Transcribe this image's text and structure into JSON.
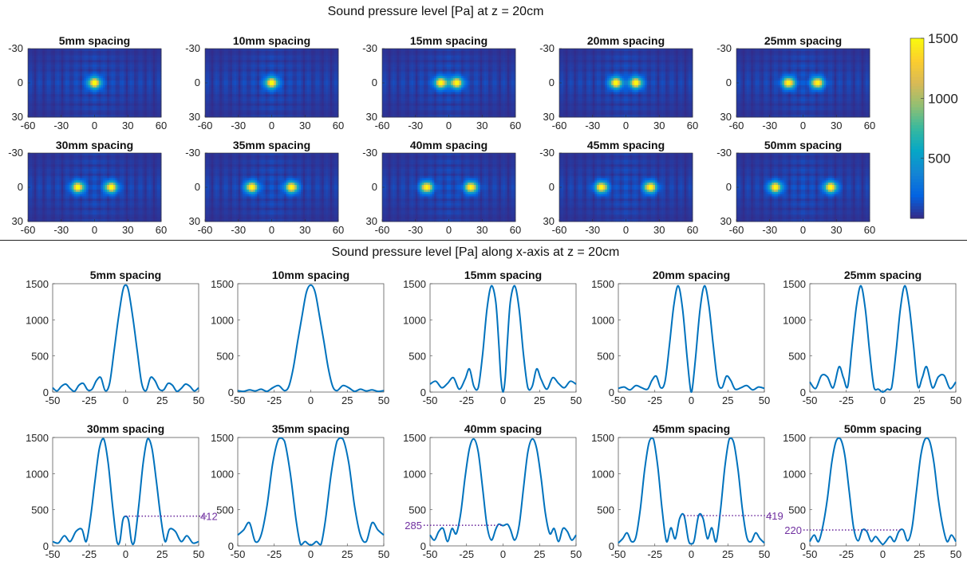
{
  "top_title": "Sound pressure level [Pa] at z = 20cm",
  "bottom_title": "Sound pressure level [Pa] along x-axis at z = 20cm",
  "colormap": {
    "name": "parula",
    "stops": [
      "#352a87",
      "#0363e1",
      "#1485d4",
      "#06a7c6",
      "#38b99e",
      "#92bf73",
      "#d9ba56",
      "#fcce2e",
      "#f9fb0e"
    ],
    "range": [
      0,
      1500
    ],
    "ticks": [
      "500",
      "1000",
      "1500"
    ]
  },
  "chart_data": [
    {
      "type": "heatmap",
      "group": "field-maps",
      "title": "5mm spacing",
      "spacing_mm": 5,
      "xlim": [
        -60,
        60
      ],
      "ylim": [
        -30,
        30
      ],
      "xticks": [
        "-60",
        "-30",
        "0",
        "30",
        "60"
      ],
      "yticks": [
        "-30",
        "0",
        "30"
      ],
      "peaks_x_mm": [
        0
      ],
      "peak_value": 1500
    },
    {
      "type": "heatmap",
      "group": "field-maps",
      "title": "10mm spacing",
      "spacing_mm": 10,
      "xlim": [
        -60,
        60
      ],
      "ylim": [
        -30,
        30
      ],
      "xticks": [
        "-60",
        "-30",
        "0",
        "30",
        "60"
      ],
      "yticks": [
        "-30",
        "0",
        "30"
      ],
      "peaks_x_mm": [
        0
      ],
      "peak_value": 1500
    },
    {
      "type": "heatmap",
      "group": "field-maps",
      "title": "15mm spacing",
      "spacing_mm": 15,
      "xlim": [
        -60,
        60
      ],
      "ylim": [
        -30,
        30
      ],
      "xticks": [
        "-60",
        "-30",
        "0",
        "30",
        "60"
      ],
      "yticks": [
        "-30",
        "0",
        "30"
      ],
      "peaks_x_mm": [
        -7,
        7
      ],
      "peak_value": 1500
    },
    {
      "type": "heatmap",
      "group": "field-maps",
      "title": "20mm spacing",
      "spacing_mm": 20,
      "xlim": [
        -60,
        60
      ],
      "ylim": [
        -30,
        30
      ],
      "xticks": [
        "-60",
        "-30",
        "0",
        "30",
        "60"
      ],
      "yticks": [
        "-30",
        "0",
        "30"
      ],
      "peaks_x_mm": [
        -9,
        9
      ],
      "peak_value": 1500
    },
    {
      "type": "heatmap",
      "group": "field-maps",
      "title": "25mm spacing",
      "spacing_mm": 25,
      "xlim": [
        -60,
        60
      ],
      "ylim": [
        -30,
        30
      ],
      "xticks": [
        "-60",
        "-30",
        "0",
        "30",
        "60"
      ],
      "yticks": [
        "-30",
        "0",
        "30"
      ],
      "peaks_x_mm": [
        -13,
        13
      ],
      "peak_value": 1500
    },
    {
      "type": "heatmap",
      "group": "field-maps",
      "title": "30mm spacing",
      "spacing_mm": 30,
      "xlim": [
        -60,
        60
      ],
      "ylim": [
        -30,
        30
      ],
      "xticks": [
        "-60",
        "-30",
        "0",
        "30",
        "60"
      ],
      "yticks": [
        "-30",
        "0",
        "30"
      ],
      "peaks_x_mm": [
        -15,
        15
      ],
      "peak_value": 1500
    },
    {
      "type": "heatmap",
      "group": "field-maps",
      "title": "35mm spacing",
      "spacing_mm": 35,
      "xlim": [
        -60,
        60
      ],
      "ylim": [
        -30,
        30
      ],
      "xticks": [
        "-60",
        "-30",
        "0",
        "30",
        "60"
      ],
      "yticks": [
        "-30",
        "0",
        "30"
      ],
      "peaks_x_mm": [
        -18,
        18
      ],
      "peak_value": 1500
    },
    {
      "type": "heatmap",
      "group": "field-maps",
      "title": "40mm spacing",
      "spacing_mm": 40,
      "xlim": [
        -60,
        60
      ],
      "ylim": [
        -30,
        30
      ],
      "xticks": [
        "-60",
        "-30",
        "0",
        "30",
        "60"
      ],
      "yticks": [
        "-30",
        "0",
        "30"
      ],
      "peaks_x_mm": [
        -20,
        20
      ],
      "peak_value": 1500
    },
    {
      "type": "heatmap",
      "group": "field-maps",
      "title": "45mm spacing",
      "spacing_mm": 45,
      "xlim": [
        -60,
        60
      ],
      "ylim": [
        -30,
        30
      ],
      "xticks": [
        "-60",
        "-30",
        "0",
        "30",
        "60"
      ],
      "yticks": [
        "-30",
        "0",
        "30"
      ],
      "peaks_x_mm": [
        -22,
        22
      ],
      "peak_value": 1500
    },
    {
      "type": "heatmap",
      "group": "field-maps",
      "title": "50mm spacing",
      "spacing_mm": 50,
      "xlim": [
        -60,
        60
      ],
      "ylim": [
        -30,
        30
      ],
      "xticks": [
        "-60",
        "-30",
        "0",
        "30",
        "60"
      ],
      "yticks": [
        "-30",
        "0",
        "30"
      ],
      "peaks_x_mm": [
        -25,
        25
      ],
      "peak_value": 1500
    },
    {
      "type": "line",
      "group": "x-profiles",
      "title": "5mm spacing",
      "color": "#0072bd",
      "xlim": [
        -50,
        50
      ],
      "ylim": [
        0,
        1500
      ],
      "xticks": [
        "-50",
        "-25",
        "0",
        "25",
        "50"
      ],
      "yticks": [
        "0",
        "500",
        "1000",
        "1500"
      ],
      "x": [
        -50,
        -47,
        -44,
        -41,
        -38,
        -35,
        -32,
        -29,
        -26,
        -23,
        -20,
        -17,
        -14,
        -11,
        -8,
        -5,
        -2,
        0,
        2,
        5,
        8,
        11,
        14,
        17,
        20,
        23,
        26,
        29,
        32,
        35,
        38,
        41,
        44,
        47,
        50
      ],
      "y": [
        60,
        15,
        80,
        110,
        50,
        10,
        95,
        120,
        30,
        40,
        160,
        200,
        20,
        120,
        560,
        1020,
        1400,
        1480,
        1400,
        1020,
        560,
        120,
        20,
        200,
        160,
        40,
        30,
        120,
        95,
        10,
        50,
        110,
        80,
        15,
        60
      ]
    },
    {
      "type": "line",
      "group": "x-profiles",
      "title": "10mm spacing",
      "color": "#0072bd",
      "xlim": [
        -50,
        50
      ],
      "ylim": [
        0,
        1500
      ],
      "xticks": [
        "-50",
        "-25",
        "0",
        "25",
        "50"
      ],
      "yticks": [
        "0",
        "500",
        "1000",
        "1500"
      ],
      "x": [
        -50,
        -46,
        -42,
        -38,
        -34,
        -30,
        -26,
        -22,
        -18,
        -15,
        -12,
        -9,
        -6,
        -3,
        0,
        3,
        6,
        9,
        12,
        15,
        18,
        22,
        26,
        30,
        34,
        38,
        42,
        46,
        50
      ],
      "y": [
        20,
        10,
        30,
        15,
        40,
        10,
        60,
        90,
        20,
        80,
        330,
        700,
        1050,
        1380,
        1480,
        1380,
        1050,
        700,
        330,
        80,
        20,
        90,
        60,
        10,
        40,
        15,
        30,
        10,
        20
      ]
    },
    {
      "type": "line",
      "group": "x-profiles",
      "title": "15mm spacing",
      "color": "#0072bd",
      "xlim": [
        -50,
        50
      ],
      "ylim": [
        0,
        1500
      ],
      "xticks": [
        "-50",
        "-25",
        "0",
        "25",
        "50"
      ],
      "yticks": [
        "0",
        "500",
        "1000",
        "1500"
      ],
      "x": [
        -50,
        -46,
        -42,
        -38,
        -34,
        -30,
        -26,
        -23,
        -20,
        -17,
        -14,
        -11,
        -8,
        -5,
        -3,
        -1.5,
        0,
        1.5,
        3,
        5,
        8,
        11,
        14,
        17,
        20,
        23,
        26,
        30,
        34,
        38,
        42,
        46,
        50
      ],
      "y": [
        110,
        150,
        60,
        120,
        200,
        40,
        180,
        320,
        80,
        60,
        520,
        1150,
        1470,
        1250,
        700,
        200,
        0,
        200,
        700,
        1250,
        1470,
        1150,
        520,
        60,
        80,
        320,
        180,
        40,
        200,
        120,
        60,
        150,
        110
      ]
    },
    {
      "type": "line",
      "group": "x-profiles",
      "title": "20mm spacing",
      "color": "#0072bd",
      "xlim": [
        -50,
        50
      ],
      "ylim": [
        0,
        1500
      ],
      "xticks": [
        "-50",
        "-25",
        "0",
        "25",
        "50"
      ],
      "yticks": [
        "0",
        "500",
        "1000",
        "1500"
      ],
      "x": [
        -50,
        -46,
        -42,
        -38,
        -34,
        -30,
        -27,
        -24,
        -21,
        -18,
        -15,
        -12,
        -9,
        -6,
        -3,
        -1,
        0,
        1,
        3,
        6,
        9,
        12,
        15,
        18,
        21,
        24,
        27,
        30,
        34,
        38,
        42,
        46,
        50
      ],
      "y": [
        50,
        70,
        30,
        90,
        60,
        40,
        160,
        220,
        60,
        150,
        650,
        1200,
        1470,
        1150,
        500,
        100,
        0,
        100,
        500,
        1150,
        1470,
        1200,
        650,
        150,
        60,
        220,
        160,
        40,
        60,
        90,
        30,
        70,
        50
      ]
    },
    {
      "type": "line",
      "group": "x-profiles",
      "title": "25mm spacing",
      "color": "#0072bd",
      "xlim": [
        -50,
        50
      ],
      "ylim": [
        0,
        1500
      ],
      "xticks": [
        "-50",
        "-25",
        "0",
        "25",
        "50"
      ],
      "yticks": [
        "0",
        "500",
        "1000",
        "1500"
      ],
      "x": [
        -50,
        -46,
        -42,
        -38,
        -34,
        -30,
        -27,
        -24,
        -21,
        -18,
        -15,
        -12,
        -9,
        -6,
        -3,
        0,
        3,
        6,
        9,
        12,
        15,
        18,
        21,
        24,
        27,
        30,
        34,
        38,
        42,
        46,
        50
      ],
      "y": [
        140,
        50,
        230,
        210,
        60,
        350,
        200,
        80,
        650,
        1200,
        1470,
        1150,
        550,
        60,
        40,
        0,
        40,
        60,
        550,
        1150,
        1470,
        1200,
        650,
        80,
        200,
        350,
        60,
        210,
        230,
        50,
        140
      ]
    },
    {
      "type": "line",
      "group": "x-profiles",
      "title": "30mm spacing",
      "color": "#0072bd",
      "xlim": [
        -50,
        50
      ],
      "ylim": [
        0,
        1500
      ],
      "xticks": [
        "-50",
        "-25",
        "0",
        "25",
        "50"
      ],
      "yticks": [
        "0",
        "500",
        "1000",
        "1500"
      ],
      "x": [
        -50,
        -46,
        -42,
        -38,
        -34,
        -30,
        -27,
        -24,
        -21,
        -18,
        -15,
        -12,
        -9,
        -6,
        -4,
        -2,
        0,
        2,
        4,
        6,
        9,
        12,
        15,
        18,
        21,
        24,
        27,
        30,
        34,
        38,
        42,
        46,
        50
      ],
      "y": [
        60,
        40,
        140,
        60,
        200,
        230,
        60,
        400,
        900,
        1350,
        1480,
        1150,
        560,
        60,
        60,
        350,
        410,
        350,
        60,
        60,
        560,
        1150,
        1480,
        1350,
        900,
        400,
        60,
        230,
        200,
        60,
        140,
        40,
        60
      ],
      "annotation": {
        "label": "412",
        "value": 412,
        "from_x": 0,
        "color": "#7030a0"
      }
    },
    {
      "type": "line",
      "group": "x-profiles",
      "title": "35mm spacing",
      "color": "#0072bd",
      "xlim": [
        -50,
        50
      ],
      "ylim": [
        0,
        1500
      ],
      "xticks": [
        "-50",
        "-25",
        "0",
        "25",
        "50"
      ],
      "yticks": [
        "0",
        "500",
        "1000",
        "1500"
      ],
      "x": [
        -50,
        -46,
        -42,
        -38,
        -34,
        -30,
        -26,
        -22,
        -18,
        -14,
        -10,
        -7,
        -4,
        -2,
        0,
        2,
        4,
        7,
        10,
        14,
        18,
        22,
        26,
        30,
        34,
        38,
        42,
        46,
        50
      ],
      "y": [
        150,
        220,
        320,
        60,
        150,
        550,
        1150,
        1480,
        1450,
        1000,
        350,
        20,
        60,
        30,
        10,
        30,
        60,
        20,
        350,
        1000,
        1450,
        1480,
        1150,
        550,
        150,
        60,
        320,
        220,
        150
      ]
    },
    {
      "type": "line",
      "group": "x-profiles",
      "title": "40mm spacing",
      "color": "#0072bd",
      "xlim": [
        -50,
        50
      ],
      "ylim": [
        0,
        1500
      ],
      "xticks": [
        "-50",
        "-25",
        "0",
        "25",
        "50"
      ],
      "yticks": [
        "0",
        "500",
        "1000",
        "1500"
      ],
      "x": [
        -50,
        -47,
        -44,
        -41,
        -38,
        -35,
        -32,
        -29,
        -26,
        -23,
        -20,
        -17,
        -14,
        -11,
        -8,
        -5,
        -3,
        0,
        3,
        5,
        8,
        11,
        14,
        17,
        20,
        23,
        26,
        29,
        32,
        35,
        38,
        41,
        44,
        47,
        50
      ],
      "y": [
        150,
        80,
        200,
        240,
        60,
        240,
        170,
        450,
        950,
        1350,
        1480,
        1300,
        800,
        280,
        80,
        230,
        300,
        280,
        300,
        230,
        80,
        280,
        800,
        1300,
        1480,
        1350,
        950,
        450,
        170,
        240,
        60,
        240,
        200,
        80,
        150
      ],
      "annotation": {
        "label": "285",
        "value": 285,
        "from_x": 0,
        "color": "#7030a0"
      }
    },
    {
      "type": "line",
      "group": "x-profiles",
      "title": "45mm spacing",
      "color": "#0072bd",
      "xlim": [
        -50,
        50
      ],
      "ylim": [
        0,
        1500
      ],
      "xticks": [
        "-50",
        "-25",
        "0",
        "25",
        "50"
      ],
      "yticks": [
        "0",
        "500",
        "1000",
        "1500"
      ],
      "x": [
        -50,
        -47,
        -44,
        -41,
        -38,
        -35,
        -32,
        -29,
        -26,
        -23,
        -20,
        -17,
        -14,
        -11,
        -8,
        -5,
        -2,
        0,
        2,
        5,
        8,
        11,
        14,
        17,
        20,
        23,
        26,
        29,
        32,
        35,
        38,
        41,
        44,
        47,
        50
      ],
      "y": [
        40,
        100,
        180,
        60,
        120,
        500,
        1050,
        1430,
        1480,
        1100,
        500,
        60,
        250,
        100,
        380,
        420,
        80,
        30,
        80,
        420,
        380,
        100,
        250,
        60,
        500,
        1100,
        1480,
        1430,
        1050,
        500,
        120,
        60,
        180,
        100,
        40
      ],
      "annotation": {
        "label": "419",
        "value": 419,
        "from_x": -5,
        "color": "#7030a0"
      }
    },
    {
      "type": "line",
      "group": "x-profiles",
      "title": "50mm spacing",
      "color": "#0072bd",
      "xlim": [
        -50,
        50
      ],
      "ylim": [
        0,
        1500
      ],
      "xticks": [
        "-50",
        "-25",
        "0",
        "25",
        "50"
      ],
      "yticks": [
        "0",
        "500",
        "1000",
        "1500"
      ],
      "x": [
        -50,
        -47,
        -44,
        -41,
        -38,
        -35,
        -32,
        -29,
        -26,
        -23,
        -20,
        -17,
        -14,
        -11,
        -8,
        -5,
        -2,
        0,
        2,
        5,
        8,
        11,
        14,
        17,
        20,
        23,
        26,
        29,
        32,
        35,
        38,
        41,
        44,
        47,
        50
      ],
      "y": [
        60,
        150,
        60,
        280,
        650,
        1150,
        1450,
        1480,
        1250,
        750,
        250,
        70,
        220,
        200,
        60,
        130,
        60,
        20,
        60,
        130,
        60,
        200,
        220,
        70,
        250,
        750,
        1250,
        1480,
        1450,
        1150,
        650,
        280,
        60,
        150,
        60
      ],
      "annotation": {
        "label": "220",
        "value": 220,
        "from_x": 12,
        "color": "#7030a0"
      }
    }
  ]
}
